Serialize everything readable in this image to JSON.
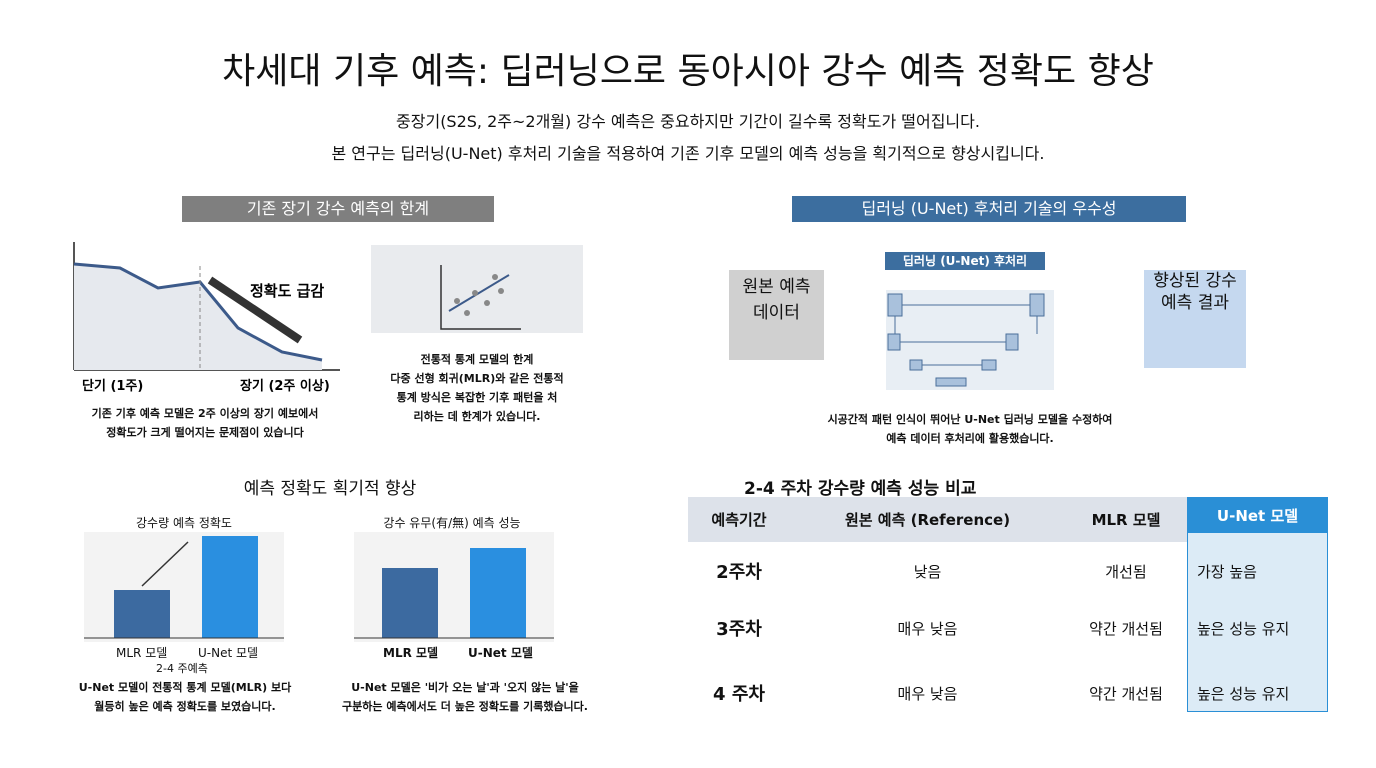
{
  "header": {
    "title": "차세대 기후 예측: 딥러닝으로 동아시아 강수 예측 정확도 향상",
    "subtitle": [
      "중장기(S2S, 2주~2개월) 강수 예측은 중요하지만 기간이 길수록 정확도가 떨어집니다.",
      "본 연구는 딥러닝(U-Net) 후처리 기술을 적용하여 기존 기후 모델의 예측 성능을 획기적으로 향상시킵니다."
    ]
  },
  "limits": {
    "heading": "기존 장기 강수 예측의 한계",
    "chart_label": "정확도 급감",
    "x_left": "단기 (1주)",
    "x_right": "장기 (2주 이상)",
    "caption": [
      "기존 기후 예측 모델은 2주 이상의 장기 예보에서",
      "정확도가 크게 떨어지는 문제점이 있습니다"
    ],
    "mlr_caption": [
      "전통적 통계 모델의 한계",
      "다중 선형 회귀(MLR)와 같은 전통적",
      "통계 방식은 복잡한 기후 패턴을 처",
      "리하는 데 한계가 있습니다."
    ]
  },
  "unet": {
    "heading": "딥러닝 (U-Net) 후처리 기술의 우수성",
    "input": [
      "원본 예측",
      "데이터"
    ],
    "label": "딥러닝 (U-Net) 후처리",
    "output": [
      "향상된 강수",
      "예측 결과"
    ],
    "caption": [
      "시공간적 패턴 인식이 뛰어난 U-Net 딥러닝 모델을 수정하여",
      "예측 데이터 후처리에 활용했습니다."
    ]
  },
  "improvement": {
    "heading": "예측 정확도 획기적 향상",
    "left": {
      "title": "강수량 예측 정확도",
      "bars": [
        "MLR 모델",
        "U-Net 모델"
      ],
      "note": "2-4 주예측",
      "caption": [
        "U-Net 모델이 전통적 통계 모델(MLR) 보다",
        "월등히 높은 예측 정확도를 보였습니다."
      ]
    },
    "right": {
      "title": "강수 유무(有/無) 예측 성능",
      "bars": [
        "MLR 모델",
        "U-Net 모델"
      ],
      "caption": [
        "U-Net 모델은 '비가 오는 날'과 '오지 않는 날'을",
        "구분하는 예측에서도 더 높은 정확도를 기록했습니다."
      ]
    }
  },
  "table": {
    "title": "2-4 주차 강수량 예측 성능 비교",
    "header": [
      "예측기간",
      "원본 예측 (Reference)",
      "MLR 모델",
      "U-Net 모델"
    ],
    "rows": [
      [
        "2주차",
        "낮음",
        "개선됨",
        "가장 높음"
      ],
      [
        "3주차",
        "매우 낮음",
        "약간 개선됨",
        "높은 성능 유지"
      ],
      [
        "4 주차",
        "매우 낮음",
        "약간 개선됨",
        "높은 성능 유지"
      ]
    ]
  }
}
